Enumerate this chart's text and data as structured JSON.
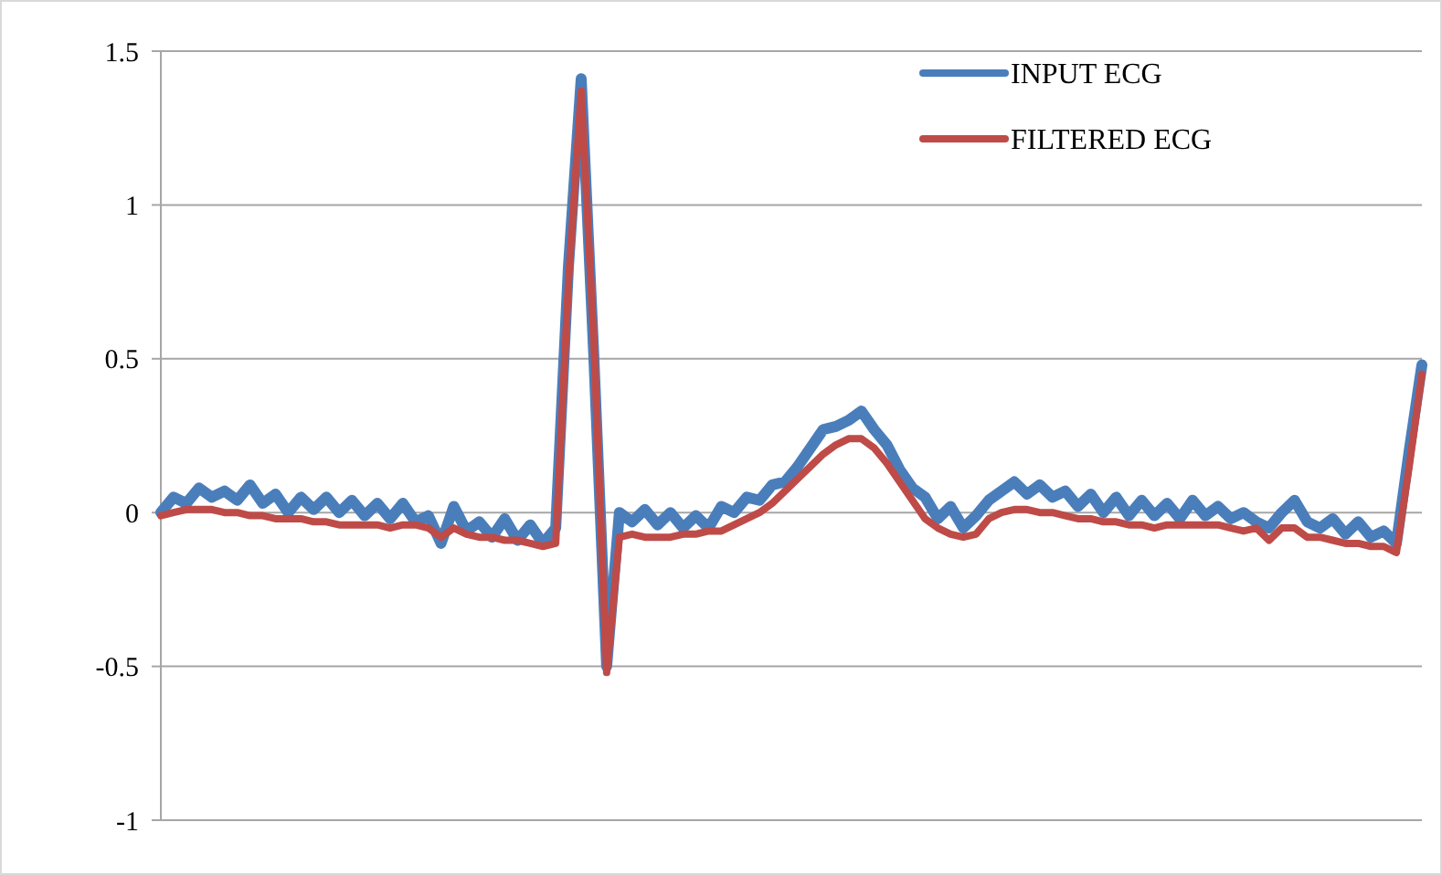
{
  "chart_data": {
    "type": "line",
    "categories": [
      null,
      null,
      null,
      null,
      null,
      null,
      null,
      null,
      null,
      null,
      null,
      null,
      null,
      null,
      null,
      null,
      null,
      null,
      null,
      null,
      null,
      null,
      null,
      null,
      null,
      null,
      null,
      null,
      null,
      null,
      null,
      null,
      null,
      null,
      null,
      null,
      null,
      null,
      null,
      null,
      null,
      null,
      null,
      null,
      null,
      null,
      null,
      null,
      null,
      null,
      null,
      null,
      null,
      null,
      null,
      null,
      null,
      null,
      null,
      null,
      null,
      null,
      null,
      null,
      null,
      null,
      null,
      null,
      null,
      null,
      null,
      null,
      null,
      null,
      null,
      null,
      null,
      null,
      null,
      null,
      null,
      null,
      null,
      null,
      null,
      null,
      null,
      null,
      null,
      null,
      null,
      null,
      null,
      null,
      null,
      null,
      null,
      null,
      null,
      null
    ],
    "ylim": [
      -1,
      1.5
    ],
    "yticks": [
      -1,
      -0.5,
      0,
      0.5,
      1,
      1.5
    ],
    "grid": "y",
    "legend": "top right",
    "marker": "none",
    "line_style": "solid",
    "series": [
      {
        "name": "INPUT ECG",
        "color": "#4a7ebb",
        "values": [
          0.0,
          0.05,
          0.03,
          0.08,
          0.05,
          0.07,
          0.04,
          0.09,
          0.03,
          0.06,
          0.0,
          0.05,
          0.01,
          0.05,
          0.0,
          0.04,
          -0.01,
          0.03,
          -0.02,
          0.03,
          -0.03,
          -0.01,
          -0.1,
          0.02,
          -0.06,
          -0.03,
          -0.08,
          -0.02,
          -0.09,
          -0.04,
          -0.1,
          -0.05,
          0.8,
          1.41,
          0.5,
          -0.5,
          0.0,
          -0.03,
          0.01,
          -0.04,
          0.0,
          -0.05,
          -0.01,
          -0.05,
          0.02,
          0.0,
          0.05,
          0.04,
          0.09,
          0.1,
          0.15,
          0.21,
          0.27,
          0.28,
          0.3,
          0.33,
          0.27,
          0.22,
          0.14,
          0.08,
          0.05,
          -0.02,
          0.02,
          -0.05,
          -0.01,
          0.04,
          0.07,
          0.1,
          0.06,
          0.09,
          0.05,
          0.07,
          0.02,
          0.06,
          0.0,
          0.05,
          -0.01,
          0.04,
          -0.01,
          0.03,
          -0.02,
          0.04,
          -0.01,
          0.02,
          -0.02,
          0.0,
          -0.03,
          -0.05,
          0.0,
          0.04,
          -0.03,
          -0.05,
          -0.02,
          -0.07,
          -0.03,
          -0.08,
          -0.06,
          -0.1,
          0.2,
          0.48
        ]
      },
      {
        "name": "FILTERED ECG",
        "color": "#be4b48",
        "values": [
          -0.01,
          0.0,
          0.01,
          0.01,
          0.01,
          0.0,
          0.0,
          -0.01,
          -0.01,
          -0.02,
          -0.02,
          -0.02,
          -0.03,
          -0.03,
          -0.04,
          -0.04,
          -0.04,
          -0.04,
          -0.05,
          -0.04,
          -0.04,
          -0.05,
          -0.08,
          -0.05,
          -0.07,
          -0.08,
          -0.08,
          -0.09,
          -0.09,
          -0.1,
          -0.11,
          -0.1,
          0.75,
          1.37,
          0.55,
          -0.52,
          -0.08,
          -0.07,
          -0.08,
          -0.08,
          -0.08,
          -0.07,
          -0.07,
          -0.06,
          -0.06,
          -0.04,
          -0.02,
          0.0,
          0.03,
          0.07,
          0.11,
          0.15,
          0.19,
          0.22,
          0.24,
          0.24,
          0.21,
          0.16,
          0.1,
          0.04,
          -0.02,
          -0.05,
          -0.07,
          -0.08,
          -0.07,
          -0.02,
          0.0,
          0.01,
          0.01,
          0.0,
          0.0,
          -0.01,
          -0.02,
          -0.02,
          -0.03,
          -0.03,
          -0.04,
          -0.04,
          -0.05,
          -0.04,
          -0.04,
          -0.04,
          -0.04,
          -0.04,
          -0.05,
          -0.06,
          -0.05,
          -0.09,
          -0.05,
          -0.05,
          -0.08,
          -0.08,
          -0.09,
          -0.1,
          -0.1,
          -0.11,
          -0.11,
          -0.13,
          0.15,
          0.45
        ]
      }
    ]
  }
}
